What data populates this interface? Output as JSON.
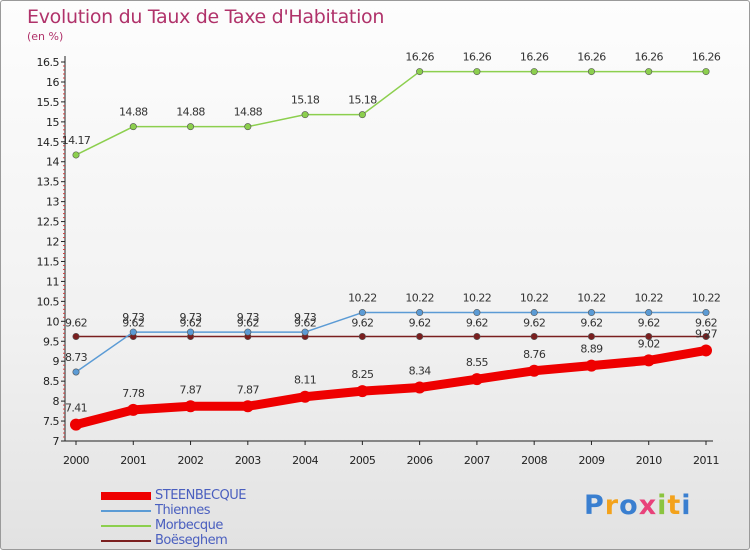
{
  "title": "Evolution du Taux de Taxe d'Habitation",
  "subtitle": "(en %)",
  "logo": {
    "text": "Proxiti",
    "colors": [
      "#3a7fd0",
      "#f3a21b",
      "#3a7fd0",
      "#e8427a",
      "#8bc43f",
      "#f3a21b",
      "#3a7fd0"
    ]
  },
  "chart_data": {
    "type": "line",
    "title": "Evolution du Taux de Taxe d'Habitation",
    "ylabel": "(en %)",
    "x": [
      "2000",
      "2001",
      "2002",
      "2003",
      "2004",
      "2005",
      "2006",
      "2007",
      "2008",
      "2009",
      "2010",
      "2011"
    ],
    "ylim": [
      7,
      16.5
    ],
    "yticks": [
      "7",
      "7.5",
      "8",
      "8.5",
      "9",
      "9.5",
      "10",
      "10.5",
      "11",
      "11.5",
      "12",
      "12.5",
      "13",
      "13.5",
      "14",
      "14.5",
      "15",
      "15.5",
      "16",
      "16.5"
    ],
    "grid": false,
    "legend_position": "bottom-left",
    "series": [
      {
        "name": "STEENBECQUE",
        "color": "#ee0000",
        "width": 9,
        "values": [
          7.41,
          7.78,
          7.87,
          7.87,
          8.11,
          8.25,
          8.34,
          8.55,
          8.76,
          8.89,
          9.02,
          9.27
        ]
      },
      {
        "name": "Thiennes",
        "color": "#5b9bd5",
        "width": 1.5,
        "values": [
          8.73,
          9.73,
          9.73,
          9.73,
          9.73,
          10.22,
          10.22,
          10.22,
          10.22,
          10.22,
          10.22,
          10.22
        ]
      },
      {
        "name": "Morbecque",
        "color": "#8ccf4e",
        "width": 1.5,
        "values": [
          14.17,
          14.88,
          14.88,
          14.88,
          15.18,
          15.18,
          16.26,
          16.26,
          16.26,
          16.26,
          16.26,
          16.26
        ]
      },
      {
        "name": "Boëseghem",
        "color": "#7a1f1f",
        "width": 1.5,
        "values": [
          9.62,
          9.62,
          9.62,
          9.62,
          9.62,
          9.62,
          9.62,
          9.62,
          9.62,
          9.62,
          9.62,
          9.62
        ]
      }
    ],
    "data_labels": [
      [
        "7.41",
        "7.78",
        "7.87",
        "7.87",
        "8.11",
        "8.25",
        "8.34",
        "8.55",
        "8.76",
        "8.89",
        "9.02",
        "9.27"
      ],
      [
        "8.73",
        "9.73",
        "9.73",
        "9.73",
        "9.73",
        "10.22",
        "10.22",
        "10.22",
        "10.22",
        "10.22",
        "10.22",
        "10.22"
      ],
      [
        "14.17",
        "14.88",
        "14.88",
        "14.88",
        "15.18",
        "15.18",
        "16.26",
        "16.26",
        "16.26",
        "16.26",
        "16.26",
        "16.26"
      ],
      [
        "9.62",
        "9.62",
        "9.62",
        "9.62",
        "9.62",
        "9.62",
        "9.62",
        "9.62",
        "9.62",
        "9.62",
        "9.62",
        "9.62"
      ]
    ]
  }
}
